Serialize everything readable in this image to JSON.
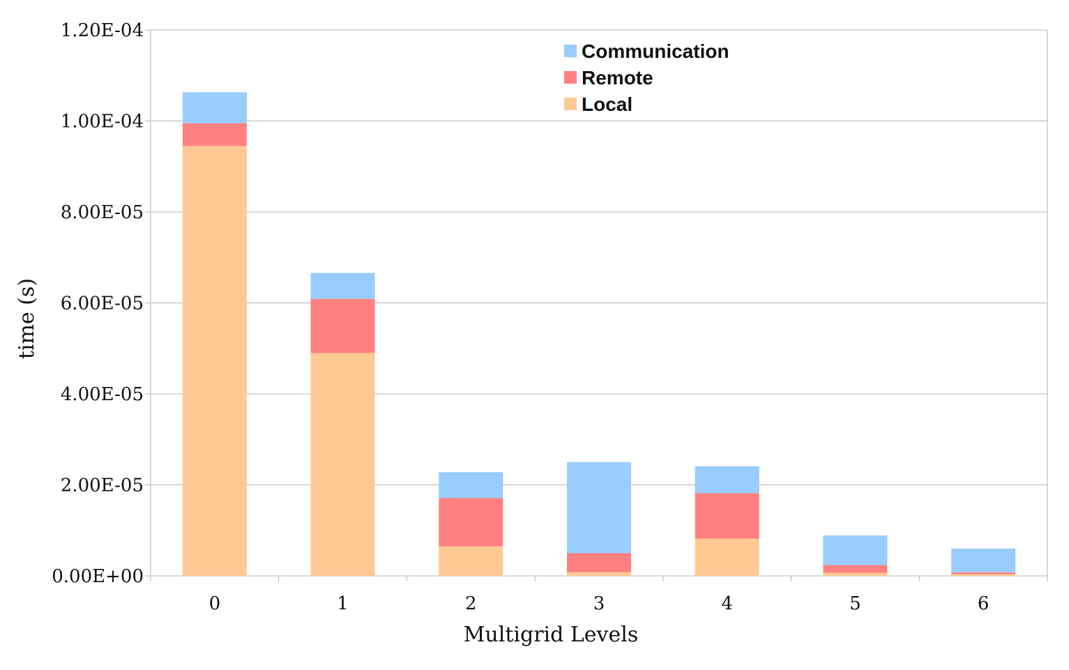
{
  "chart_data": {
    "type": "bar",
    "stacked": true,
    "title": "",
    "xlabel": "Multigrid  Levels",
    "ylabel": "time  (s)",
    "categories": [
      "0",
      "1",
      "2",
      "3",
      "4",
      "5",
      "6"
    ],
    "ylim": [
      0,
      0.00012
    ],
    "yticks": [
      0,
      2e-05,
      4e-05,
      6e-05,
      8e-05,
      0.0001,
      0.00012
    ],
    "ytick_labels": [
      "0.00E+00",
      "2.00E-05",
      "4.00E-05",
      "6.00E-05",
      "8.00E-05",
      "1.00E-04",
      "1.20E-04"
    ],
    "grid": true,
    "legend_position": "top-center",
    "series": [
      {
        "name": "Local",
        "color": "#ffc994",
        "values": [
          9.45e-05,
          4.9e-05,
          6.5e-06,
          8e-07,
          8.2e-06,
          7e-07,
          4e-07
        ]
      },
      {
        "name": "Remote",
        "color": "#ff8080",
        "values": [
          5e-06,
          1.19e-05,
          1.06e-05,
          4.2e-06,
          1e-05,
          1.7e-06,
          4e-07
        ]
      },
      {
        "name": "Communication",
        "color": "#99ccff",
        "values": [
          6.8e-06,
          5.7e-06,
          5.7e-06,
          2e-05,
          5.9e-06,
          6.5e-06,
          5.2e-06
        ]
      }
    ],
    "legend_order": [
      "Communication",
      "Remote",
      "Local"
    ]
  }
}
